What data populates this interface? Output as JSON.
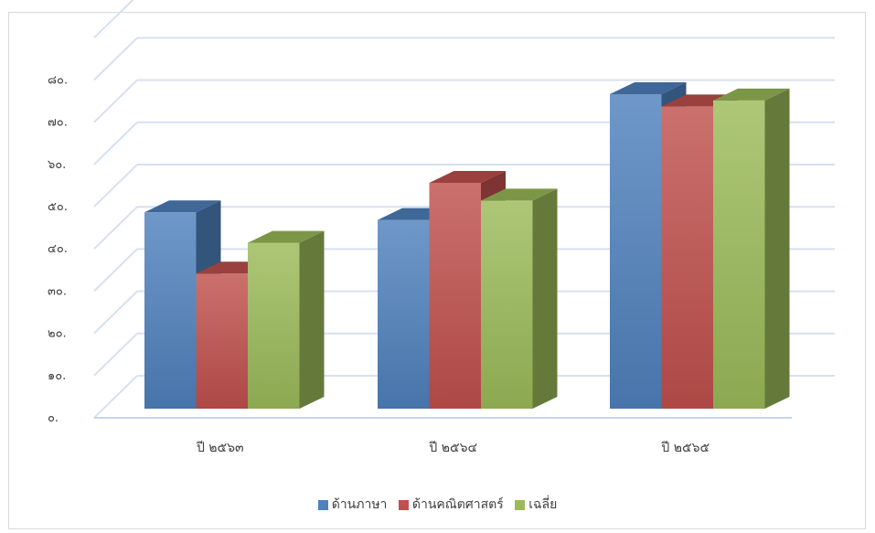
{
  "chart_data": {
    "type": "bar",
    "title": "",
    "xlabel": "",
    "ylabel": "",
    "ylim": [
      0,
      80
    ],
    "y_ticks": [
      "๐.",
      "๑๐.",
      "๒๐.",
      "๓๐.",
      "๔๐.",
      "๕๐.",
      "๖๐.",
      "๗๐.",
      "๘๐."
    ],
    "categories": [
      "ปี ๒๕๖๓",
      "ปี ๒๕๖๔",
      "ปี ๒๕๖๕"
    ],
    "series": [
      {
        "name": "ด้านภาษา",
        "values": [
          49.5,
          47.7,
          77.5
        ],
        "color": "#4f81bd"
      },
      {
        "name": "ด้านคณิตศาสตร์",
        "values": [
          35.0,
          56.5,
          74.6
        ],
        "color": "#c0504d"
      },
      {
        "name": "เฉลี่ย",
        "values": [
          42.3,
          52.3,
          76.0
        ],
        "color": "#9bbb59"
      }
    ],
    "grid": true,
    "legend_position": "bottom",
    "style": "3d-clustered-column"
  }
}
